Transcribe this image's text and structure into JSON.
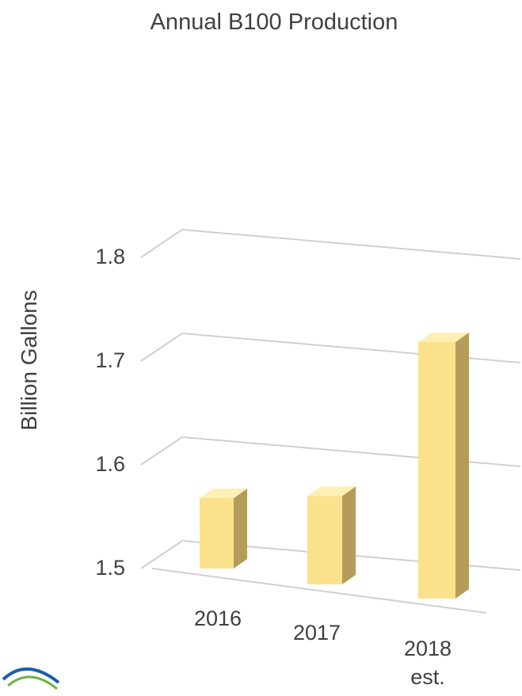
{
  "colors": {
    "bar_front": "#FBE18B",
    "bar_top": "#FDF0B5",
    "bar_side": "#B59C5A",
    "gridline": "#D0D0D0",
    "text": "#404040",
    "logo_blue": "#1A5FA8",
    "logo_green": "#6DB33F"
  },
  "logo": {
    "icon": "eia-logo-icon"
  },
  "chart_data": {
    "type": "bar",
    "title": "Annual B100 Production",
    "xlabel": "",
    "ylabel": "Billion Gallons",
    "categories": [
      "2016",
      "2017",
      "2018 est."
    ],
    "category_lines": [
      [
        "2016"
      ],
      [
        "2017"
      ],
      [
        "2018",
        "est."
      ]
    ],
    "values": [
      1.57,
      1.59,
      1.74
    ],
    "ylim": [
      1.5,
      1.8
    ],
    "yticks": [
      "1.5",
      "1.6",
      "1.7",
      "1.8"
    ],
    "grid": true,
    "style": "3d-column"
  }
}
